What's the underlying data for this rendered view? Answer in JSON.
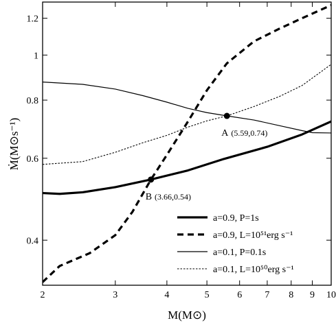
{
  "chart_data": {
    "type": "line",
    "title": "",
    "xlabel": "M(M⊙)",
    "ylabel": "Ṁ(M⊙s⁻¹)",
    "x_scale": "log",
    "y_scale": "log",
    "xlim": [
      2,
      10
    ],
    "ylim": [
      0.32,
      1.3
    ],
    "x_ticks": [
      2,
      3,
      4,
      5,
      6,
      7,
      8,
      9,
      10
    ],
    "x_tick_labels": [
      "2",
      "3",
      "4",
      "5",
      "6",
      "7",
      "8",
      "9",
      "10"
    ],
    "y_ticks": [
      0.4,
      0.6,
      0.8,
      1.0,
      1.2
    ],
    "y_tick_labels": [
      "0.4",
      "0.6",
      "0.8",
      "1",
      "1.2"
    ],
    "grid": false,
    "legend_position": "bottom-right",
    "series": [
      {
        "name": "a=0.9, P=1s",
        "style": "thick-solid",
        "x": [
          2.0,
          2.2,
          2.5,
          3.0,
          3.66,
          4.5,
          5.5,
          7.0,
          8.5,
          10.0
        ],
        "y": [
          0.505,
          0.503,
          0.507,
          0.52,
          0.54,
          0.565,
          0.598,
          0.635,
          0.675,
          0.72
        ]
      },
      {
        "name": "a=0.9, L=10⁵¹erg s⁻¹",
        "style": "thick-dashed",
        "x": [
          2.0,
          2.2,
          2.6,
          3.0,
          3.3,
          3.66,
          4.0,
          4.5,
          5.0,
          5.59,
          6.5,
          7.5,
          8.5,
          10.0
        ],
        "y": [
          0.325,
          0.352,
          0.375,
          0.41,
          0.46,
          0.54,
          0.61,
          0.72,
          0.84,
          0.96,
          1.07,
          1.14,
          1.2,
          1.28
        ]
      },
      {
        "name": "a=0.1, P=0.1s",
        "style": "thin-solid",
        "x": [
          2.0,
          2.5,
          3.0,
          3.5,
          4.0,
          4.5,
          5.0,
          5.59,
          6.5,
          7.5,
          8.5,
          9.0,
          10.0
        ],
        "y": [
          0.875,
          0.865,
          0.845,
          0.818,
          0.792,
          0.768,
          0.752,
          0.74,
          0.725,
          0.705,
          0.688,
          0.681,
          0.68
        ]
      },
      {
        "name": "a=0.1, L=10⁵⁰erg s⁻¹",
        "style": "thin-dotted",
        "x": [
          2.0,
          2.5,
          3.0,
          3.5,
          4.0,
          4.5,
          5.0,
          5.59,
          6.5,
          7.5,
          8.5,
          10.0
        ],
        "y": [
          0.582,
          0.59,
          0.618,
          0.648,
          0.672,
          0.7,
          0.722,
          0.74,
          0.775,
          0.815,
          0.86,
          0.955
        ]
      }
    ],
    "annotations": [
      {
        "label": "A",
        "coords": "(5.59,0.74)",
        "x": 5.59,
        "y": 0.74
      },
      {
        "label": "B",
        "coords": "(3.66,0.54)",
        "x": 3.66,
        "y": 0.54
      }
    ]
  }
}
